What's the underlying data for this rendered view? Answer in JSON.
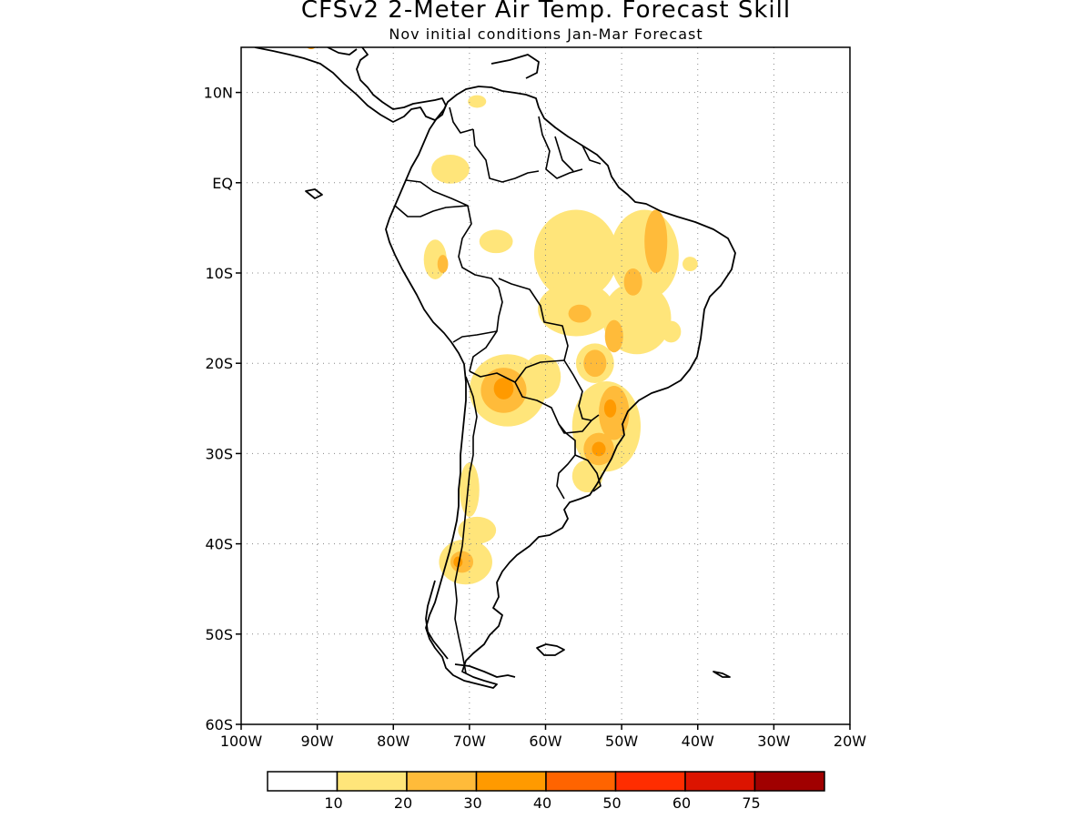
{
  "header": {
    "title": "CFSv2 2-Meter Air Temp. Forecast Skill",
    "subtitle": "Nov initial conditions  Jan-Mar Forecast"
  },
  "map": {
    "lon_range": [
      -100,
      -20
    ],
    "lat_range": [
      -60,
      15
    ],
    "lat_ticks": [
      {
        "value": 10,
        "label": "10N"
      },
      {
        "value": 0,
        "label": "EQ"
      },
      {
        "value": -10,
        "label": "10S"
      },
      {
        "value": -20,
        "label": "20S"
      },
      {
        "value": -30,
        "label": "30S"
      },
      {
        "value": -40,
        "label": "40S"
      },
      {
        "value": -50,
        "label": "50S"
      },
      {
        "value": -60,
        "label": "60S"
      }
    ],
    "lon_ticks": [
      {
        "value": -100,
        "label": "100W"
      },
      {
        "value": -90,
        "label": "90W"
      },
      {
        "value": -80,
        "label": "80W"
      },
      {
        "value": -70,
        "label": "70W"
      },
      {
        "value": -60,
        "label": "60W"
      },
      {
        "value": -50,
        "label": "50W"
      },
      {
        "value": -40,
        "label": "40W"
      },
      {
        "value": -30,
        "label": "30W"
      },
      {
        "value": -20,
        "label": "20W"
      }
    ],
    "grid": true
  },
  "colorbar": {
    "colors": [
      "#ffffff",
      "#ffe57a",
      "#ffbb3a",
      "#ff9a00",
      "#ff6400",
      "#ff2d00",
      "#dc1400",
      "#a00000"
    ],
    "labels": [
      "10",
      "20",
      "30",
      "40",
      "50",
      "60",
      "75"
    ]
  },
  "skill_areas": [
    {
      "level": 1,
      "lon": -66.5,
      "lat": -6.5,
      "rx": 2.2,
      "ry": 1.3
    },
    {
      "level": 1,
      "lon": -74.5,
      "lat": -8.5,
      "rx": 1.5,
      "ry": 2.2
    },
    {
      "level": 1,
      "lon": -72.5,
      "lat": 1.5,
      "rx": 2.5,
      "ry": 1.6
    },
    {
      "level": 1,
      "lon": -69,
      "lat": 9,
      "rx": 1.2,
      "ry": 0.7
    },
    {
      "level": 1,
      "lon": -56,
      "lat": -8,
      "rx": 5.5,
      "ry": 5
    },
    {
      "level": 1,
      "lon": -47,
      "lat": -8,
      "rx": 4.5,
      "ry": 5
    },
    {
      "level": 1,
      "lon": -56,
      "lat": -14,
      "rx": 5,
      "ry": 3
    },
    {
      "level": 1,
      "lon": -48,
      "lat": -15,
      "rx": 4.5,
      "ry": 4
    },
    {
      "level": 1,
      "lon": -53.5,
      "lat": -20,
      "rx": 2.5,
      "ry": 2.2
    },
    {
      "level": 1,
      "lon": -65,
      "lat": -23,
      "rx": 5,
      "ry": 4
    },
    {
      "level": 1,
      "lon": -60.5,
      "lat": -21.5,
      "rx": 2.5,
      "ry": 2.5
    },
    {
      "level": 1,
      "lon": -52,
      "lat": -27,
      "rx": 4.5,
      "ry": 5
    },
    {
      "level": 1,
      "lon": -54.5,
      "lat": -32.5,
      "rx": 2,
      "ry": 1.8
    },
    {
      "level": 1,
      "lon": -70,
      "lat": -34,
      "rx": 1.3,
      "ry": 3
    },
    {
      "level": 1,
      "lon": -69,
      "lat": -38.5,
      "rx": 2.5,
      "ry": 1.5
    },
    {
      "level": 1,
      "lon": -70.5,
      "lat": -42,
      "rx": 3.5,
      "ry": 2.5
    },
    {
      "level": 1,
      "lon": -43.5,
      "lat": -16.5,
      "rx": 1.3,
      "ry": 1.2
    },
    {
      "level": 1,
      "lon": -41,
      "lat": -9,
      "rx": 1,
      "ry": 0.8
    },
    {
      "level": 2,
      "lon": -45.5,
      "lat": -6.5,
      "rx": 1.5,
      "ry": 3.5
    },
    {
      "level": 2,
      "lon": -48.5,
      "lat": -11,
      "rx": 1.2,
      "ry": 1.5
    },
    {
      "level": 2,
      "lon": -55.5,
      "lat": -14.5,
      "rx": 1.5,
      "ry": 1
    },
    {
      "level": 2,
      "lon": -51,
      "lat": -17,
      "rx": 1.2,
      "ry": 1.8
    },
    {
      "level": 2,
      "lon": -53.5,
      "lat": -20,
      "rx": 1.5,
      "ry": 1.5
    },
    {
      "level": 2,
      "lon": -65.5,
      "lat": -23,
      "rx": 3,
      "ry": 2.5
    },
    {
      "level": 2,
      "lon": -51,
      "lat": -25.5,
      "rx": 2,
      "ry": 3
    },
    {
      "level": 2,
      "lon": -53,
      "lat": -29.5,
      "rx": 2,
      "ry": 1.8
    },
    {
      "level": 2,
      "lon": -71,
      "lat": -42,
      "rx": 1.5,
      "ry": 1.2
    },
    {
      "level": 2,
      "lon": -73.5,
      "lat": -9,
      "rx": 0.7,
      "ry": 1
    },
    {
      "level": 3,
      "lon": -65.5,
      "lat": -22.8,
      "rx": 1.3,
      "ry": 1.2
    },
    {
      "level": 3,
      "lon": -51.5,
      "lat": -25,
      "rx": 0.8,
      "ry": 1
    },
    {
      "level": 3,
      "lon": -53,
      "lat": -29.5,
      "rx": 0.9,
      "ry": 0.8
    },
    {
      "level": 3,
      "lon": -71.5,
      "lat": -42,
      "rx": 0.6,
      "ry": 0.6
    },
    {
      "level": 3,
      "lon": -90.8,
      "lat": 15.4,
      "rx": 0.8,
      "ry": 0.6
    }
  ]
}
